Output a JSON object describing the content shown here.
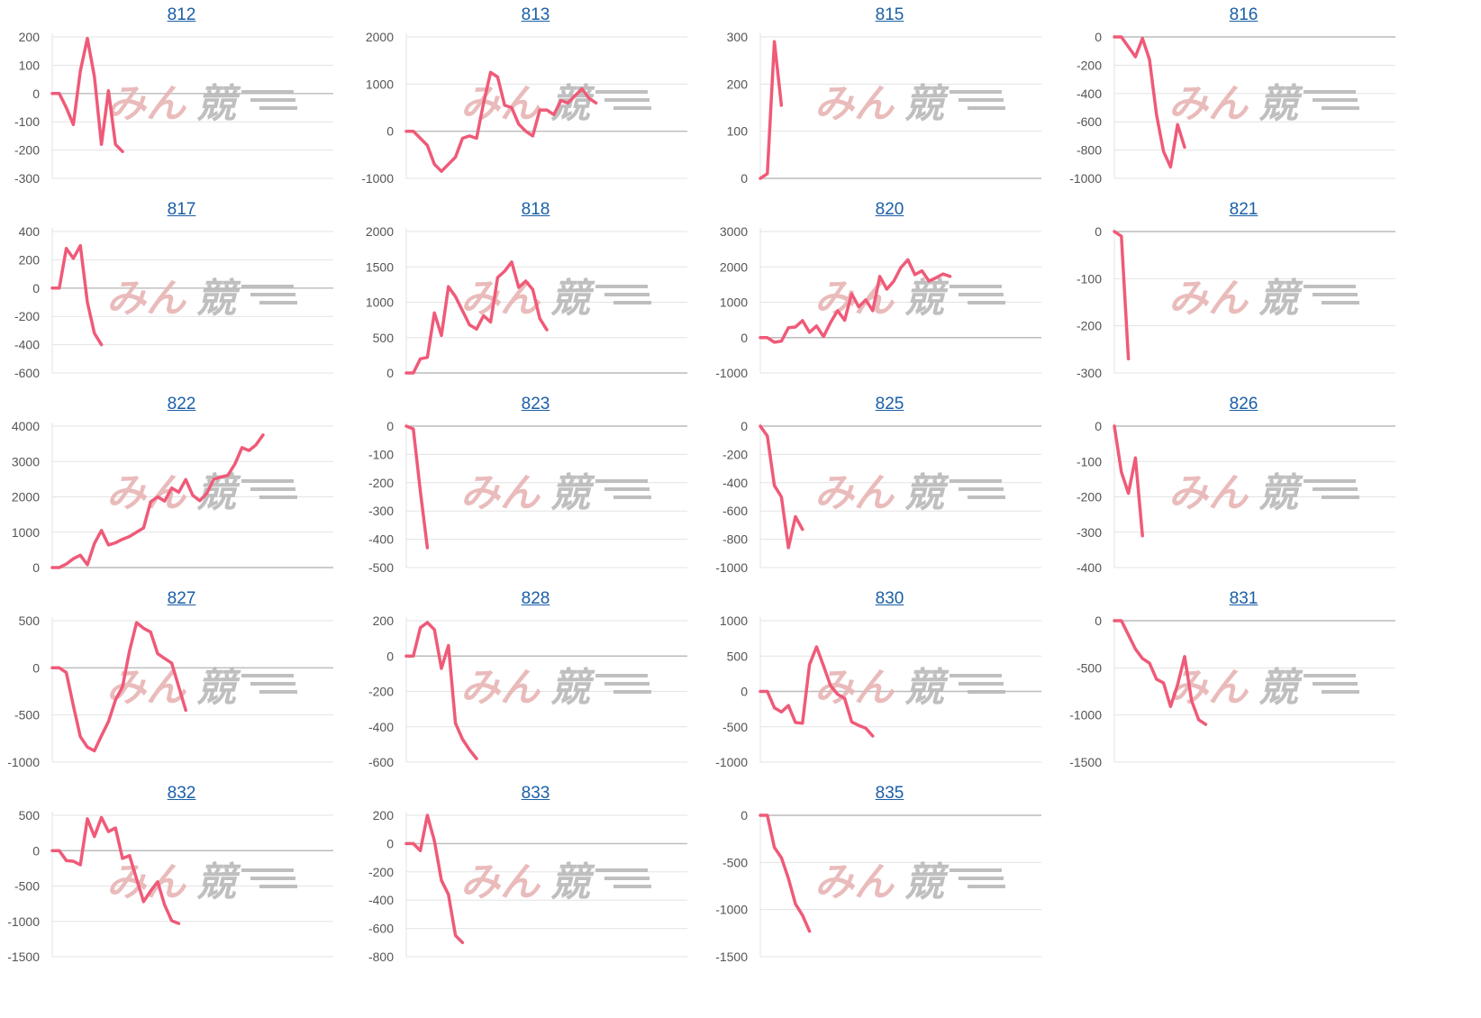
{
  "colors": {
    "line": "#ef5a78",
    "grid": "#e3e3e3",
    "zero": "#bbbbbb",
    "title": "#1a5fa6"
  },
  "watermark": {
    "part1": "みん",
    "part2": "競"
  },
  "chart_data": [
    {
      "type": "line",
      "title": "812",
      "yticks": [
        200,
        100,
        0,
        -100,
        -200,
        -300
      ],
      "ylim": [
        -300,
        200
      ],
      "xmax": 40,
      "values": [
        0,
        0,
        -50,
        -110,
        80,
        195,
        60,
        -180,
        10,
        -180,
        -205
      ]
    },
    {
      "type": "line",
      "title": "813",
      "yticks": [
        2000,
        1000,
        0,
        -1000
      ],
      "ylim": [
        -1000,
        2000
      ],
      "xmax": 40,
      "values": [
        0,
        0,
        -150,
        -300,
        -700,
        -850,
        -700,
        -550,
        -150,
        -100,
        -150,
        600,
        1250,
        1150,
        550,
        500,
        150,
        0,
        -100,
        450,
        450,
        350,
        650,
        600,
        750,
        900,
        700,
        600
      ]
    },
    {
      "type": "line",
      "title": "815",
      "yticks": [
        300,
        200,
        100,
        0
      ],
      "ylim": [
        0,
        300
      ],
      "xmax": 40,
      "values": [
        0,
        10,
        290,
        155
      ]
    },
    {
      "type": "line",
      "title": "816",
      "yticks": [
        0,
        -200,
        -400,
        -600,
        -800,
        -1000
      ],
      "ylim": [
        -1000,
        0
      ],
      "xmax": 40,
      "values": [
        0,
        0,
        -70,
        -140,
        -10,
        -160,
        -550,
        -810,
        -920,
        -620,
        -780
      ]
    },
    {
      "type": "line",
      "title": "817",
      "yticks": [
        400,
        200,
        0,
        -200,
        -400,
        -600
      ],
      "ylim": [
        -600,
        400
      ],
      "xmax": 40,
      "values": [
        0,
        0,
        280,
        210,
        300,
        -100,
        -320,
        -400
      ]
    },
    {
      "type": "line",
      "title": "818",
      "yticks": [
        2000,
        1500,
        1000,
        500,
        0
      ],
      "ylim": [
        0,
        2000
      ],
      "xmax": 40,
      "values": [
        0,
        0,
        200,
        220,
        850,
        530,
        1220,
        1080,
        880,
        680,
        620,
        810,
        720,
        1350,
        1440,
        1570,
        1210,
        1300,
        1180,
        770,
        610
      ]
    },
    {
      "type": "line",
      "title": "820",
      "yticks": [
        3000,
        2000,
        1000,
        0,
        -1000
      ],
      "ylim": [
        -1000,
        3000
      ],
      "xmax": 40,
      "values": [
        0,
        0,
        -130,
        -100,
        280,
        300,
        480,
        150,
        330,
        30,
        430,
        760,
        490,
        1240,
        870,
        1070,
        760,
        1730,
        1370,
        1600,
        1980,
        2200,
        1780,
        1890,
        1600,
        1690,
        1800,
        1730
      ]
    },
    {
      "type": "line",
      "title": "821",
      "yticks": [
        0,
        -100,
        -200,
        -300
      ],
      "ylim": [
        -300,
        0
      ],
      "xmax": 40,
      "values": [
        0,
        -10,
        -270
      ]
    },
    {
      "type": "line",
      "title": "822",
      "yticks": [
        4000,
        3000,
        2000,
        1000,
        0
      ],
      "ylim": [
        0,
        4000
      ],
      "xmax": 40,
      "values": [
        0,
        0,
        100,
        250,
        350,
        80,
        680,
        1050,
        640,
        700,
        800,
        880,
        1000,
        1120,
        1860,
        2000,
        1880,
        2250,
        2130,
        2490,
        2040,
        1890,
        2100,
        2500,
        2560,
        2610,
        2930,
        3390,
        3310,
        3470,
        3750
      ]
    },
    {
      "type": "line",
      "title": "823",
      "yticks": [
        0,
        -100,
        -200,
        -300,
        -400,
        -500
      ],
      "ylim": [
        -500,
        0
      ],
      "xmax": 40,
      "values": [
        0,
        -10,
        -230,
        -430
      ]
    },
    {
      "type": "line",
      "title": "825",
      "yticks": [
        0,
        -200,
        -400,
        -600,
        -800,
        -1000
      ],
      "ylim": [
        -1000,
        0
      ],
      "xmax": 40,
      "values": [
        0,
        -70,
        -420,
        -500,
        -860,
        -640,
        -730
      ]
    },
    {
      "type": "line",
      "title": "826",
      "yticks": [
        0,
        -100,
        -200,
        -300,
        -400
      ],
      "ylim": [
        -400,
        0
      ],
      "xmax": 40,
      "values": [
        0,
        -130,
        -190,
        -90,
        -310
      ]
    },
    {
      "type": "line",
      "title": "827",
      "yticks": [
        500,
        0,
        -500,
        -1000
      ],
      "ylim": [
        -1000,
        500
      ],
      "xmax": 40,
      "values": [
        0,
        0,
        -50,
        -400,
        -730,
        -840,
        -880,
        -720,
        -570,
        -340,
        -200,
        180,
        480,
        420,
        380,
        150,
        100,
        50,
        -200,
        -450
      ]
    },
    {
      "type": "line",
      "title": "828",
      "yticks": [
        200,
        0,
        -200,
        -400,
        -600
      ],
      "ylim": [
        -600,
        200
      ],
      "xmax": 40,
      "values": [
        0,
        0,
        160,
        190,
        150,
        -70,
        60,
        -380,
        -470,
        -530,
        -580
      ]
    },
    {
      "type": "line",
      "title": "830",
      "yticks": [
        1000,
        500,
        0,
        -500,
        -1000
      ],
      "ylim": [
        -1000,
        1000
      ],
      "xmax": 40,
      "values": [
        0,
        0,
        -230,
        -290,
        -200,
        -440,
        -450,
        380,
        630,
        360,
        80,
        -40,
        -100,
        -430,
        -480,
        -520,
        -630
      ]
    },
    {
      "type": "line",
      "title": "831",
      "yticks": [
        0,
        -500,
        -1000,
        -1500
      ],
      "ylim": [
        -1500,
        0
      ],
      "xmax": 40,
      "values": [
        0,
        0,
        -150,
        -300,
        -400,
        -450,
        -620,
        -660,
        -910,
        -680,
        -380,
        -850,
        -1050,
        -1100
      ]
    },
    {
      "type": "line",
      "title": "832",
      "yticks": [
        500,
        0,
        -500,
        -1000,
        -1500
      ],
      "ylim": [
        -1500,
        500
      ],
      "xmax": 40,
      "values": [
        0,
        0,
        -140,
        -150,
        -200,
        450,
        200,
        470,
        270,
        320,
        -110,
        -70,
        -400,
        -720,
        -570,
        -440,
        -770,
        -990,
        -1030
      ]
    },
    {
      "type": "line",
      "title": "833",
      "yticks": [
        200,
        0,
        -200,
        -400,
        -600,
        -800
      ],
      "ylim": [
        -800,
        200
      ],
      "xmax": 40,
      "values": [
        0,
        0,
        -50,
        200,
        20,
        -260,
        -360,
        -650,
        -700
      ]
    },
    {
      "type": "line",
      "title": "835",
      "yticks": [
        0,
        -500,
        -1000,
        -1500
      ],
      "ylim": [
        -1500,
        0
      ],
      "xmax": 40,
      "values": [
        0,
        0,
        -340,
        -450,
        -670,
        -940,
        -1060,
        -1230
      ]
    }
  ]
}
